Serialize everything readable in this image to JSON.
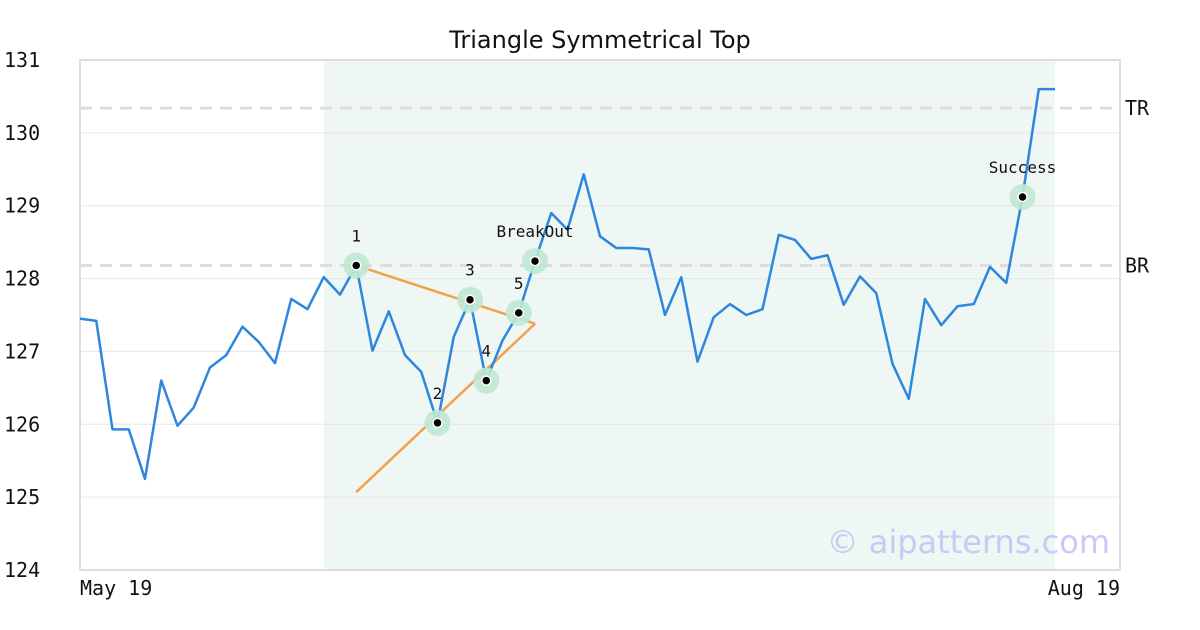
{
  "chart_data": {
    "type": "line",
    "title": "Triangle Symmetrical Top",
    "ylim": [
      124,
      131
    ],
    "yticks": [
      124,
      125,
      126,
      127,
      128,
      129,
      130,
      131
    ],
    "xlim": [
      0,
      64
    ],
    "xtick_labels": [
      {
        "x": 0,
        "label": "May 19"
      },
      {
        "x": 64,
        "label": "Aug 19"
      }
    ],
    "grid": true,
    "pattern_region": {
      "x_start": 15,
      "x_end": 60,
      "color": "#eef7f3"
    },
    "series": [
      {
        "color": "#2e86de",
        "points": [
          [
            0,
            127.45
          ],
          [
            1,
            127.42
          ],
          [
            2,
            125.93
          ],
          [
            3,
            125.93
          ],
          [
            4,
            125.25
          ],
          [
            5,
            126.6
          ],
          [
            6,
            125.98
          ],
          [
            7,
            126.23
          ],
          [
            8,
            126.78
          ],
          [
            9,
            126.95
          ],
          [
            10,
            127.34
          ],
          [
            11,
            127.13
          ],
          [
            12,
            126.84
          ],
          [
            13,
            127.72
          ],
          [
            14,
            127.58
          ],
          [
            15,
            128.02
          ],
          [
            16,
            127.78
          ],
          [
            17,
            128.18
          ],
          [
            18,
            127.01
          ],
          [
            19,
            127.55
          ],
          [
            20,
            126.95
          ],
          [
            21,
            126.72
          ],
          [
            22,
            126.02
          ],
          [
            23,
            127.2
          ],
          [
            24,
            127.71
          ],
          [
            25,
            126.6
          ],
          [
            26,
            127.15
          ],
          [
            27,
            127.53
          ],
          [
            28,
            128.24
          ],
          [
            29,
            128.9
          ],
          [
            30,
            128.67
          ],
          [
            31,
            129.43
          ],
          [
            32,
            128.58
          ],
          [
            33,
            128.42
          ],
          [
            34,
            128.42
          ],
          [
            35,
            128.4
          ],
          [
            36,
            127.5
          ],
          [
            37,
            128.02
          ],
          [
            38,
            126.86
          ],
          [
            39,
            127.47
          ],
          [
            40,
            127.65
          ],
          [
            41,
            127.5
          ],
          [
            42,
            127.58
          ],
          [
            43,
            128.6
          ],
          [
            44,
            128.53
          ],
          [
            45,
            128.27
          ],
          [
            46,
            128.32
          ],
          [
            47,
            127.64
          ],
          [
            48,
            128.03
          ],
          [
            49,
            127.8
          ],
          [
            50,
            126.83
          ],
          [
            51,
            126.35
          ],
          [
            52,
            127.72
          ],
          [
            53,
            127.36
          ],
          [
            54,
            127.62
          ],
          [
            55,
            127.65
          ],
          [
            56,
            128.16
          ],
          [
            57,
            127.94
          ],
          [
            58,
            129.12
          ],
          [
            59,
            130.6
          ],
          [
            60,
            130.6
          ]
        ]
      }
    ],
    "reference_lines": [
      {
        "label": "TR",
        "y": 130.34,
        "color": "#dddddd"
      },
      {
        "label": "BR",
        "y": 128.18,
        "color": "#dddddd"
      }
    ],
    "trendlines": [
      {
        "color": "#f4a04a",
        "points": [
          [
            17,
            128.18
          ],
          [
            28,
            127.38
          ]
        ]
      },
      {
        "color": "#f4a04a",
        "points": [
          [
            17,
            125.07
          ],
          [
            28,
            127.38
          ]
        ]
      }
    ],
    "annotations": [
      {
        "label": "1",
        "x": 17,
        "y": 128.18,
        "label_pos": "above"
      },
      {
        "label": "2",
        "x": 22,
        "y": 126.02,
        "label_pos": "above"
      },
      {
        "label": "3",
        "x": 24,
        "y": 127.71,
        "label_pos": "above"
      },
      {
        "label": "4",
        "x": 25,
        "y": 126.6,
        "label_pos": "above"
      },
      {
        "label": "5",
        "x": 27,
        "y": 127.53,
        "label_pos": "above"
      },
      {
        "label": "BreakOut",
        "x": 28,
        "y": 128.24,
        "label_pos": "above"
      },
      {
        "label": "Success",
        "x": 58,
        "y": 129.12,
        "label_pos": "above"
      }
    ],
    "watermark": "© aipatterns.com"
  }
}
